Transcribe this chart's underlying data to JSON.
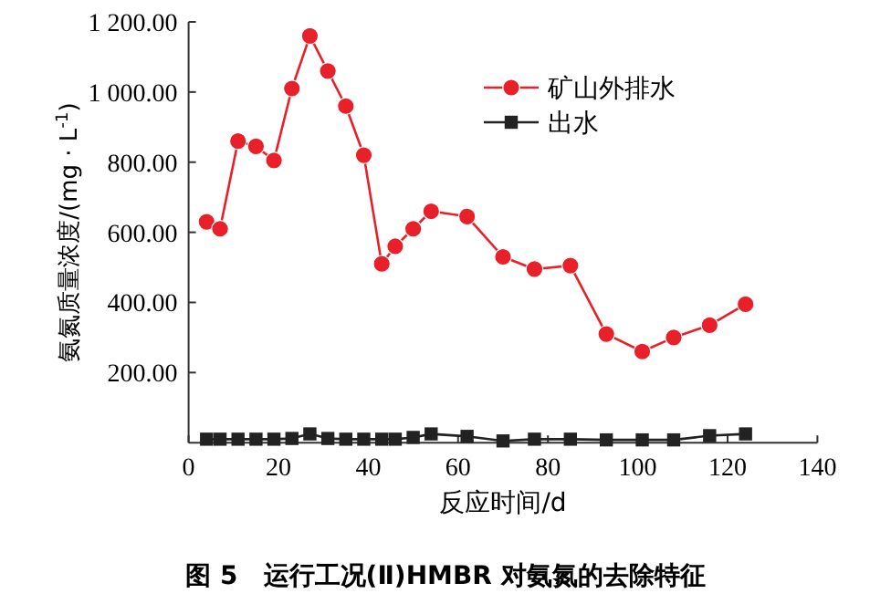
{
  "chart_data": {
    "type": "line",
    "title": "图 5　运行工况(Ⅱ)HMBR 对氨氮的去除特征",
    "xlabel": "反应时间/d",
    "ylabel": "氨氮质量浓度/(mg · L$^{-1}$)",
    "xlim": [
      0,
      140
    ],
    "xticks": [
      0,
      20,
      40,
      60,
      80,
      100,
      120,
      140
    ],
    "ylim": [
      0,
      1200
    ],
    "yticks": [
      {
        "value": 200,
        "label": "200.00"
      },
      {
        "value": 400,
        "label": "400.00"
      },
      {
        "value": 600,
        "label": "600.00"
      },
      {
        "value": 800,
        "label": "800.00"
      },
      {
        "value": 1000,
        "label": "1 000.00"
      },
      {
        "value": 1200,
        "label": "1 200.00"
      }
    ],
    "x": [
      4,
      7,
      11,
      15,
      19,
      23,
      27,
      31,
      35,
      39,
      43,
      46,
      50,
      54,
      62,
      70,
      77,
      85,
      93,
      101,
      108,
      116,
      124
    ],
    "series": [
      {
        "name": "矿山外排水",
        "color": "#e8202a",
        "marker": "circle",
        "values": [
          630,
          610,
          860,
          845,
          805,
          1010,
          1160,
          1060,
          960,
          820,
          510,
          560,
          610,
          660,
          645,
          530,
          495,
          505,
          310,
          260,
          300,
          335,
          395
        ]
      },
      {
        "name": "出水",
        "color": "#222222",
        "marker": "square",
        "values": [
          10,
          10,
          10,
          10,
          10,
          12,
          25,
          12,
          10,
          10,
          10,
          10,
          15,
          25,
          18,
          5,
          10,
          10,
          8,
          8,
          8,
          20,
          25
        ]
      }
    ],
    "legend": "top right",
    "grid": false,
    "line_style": "solid"
  }
}
